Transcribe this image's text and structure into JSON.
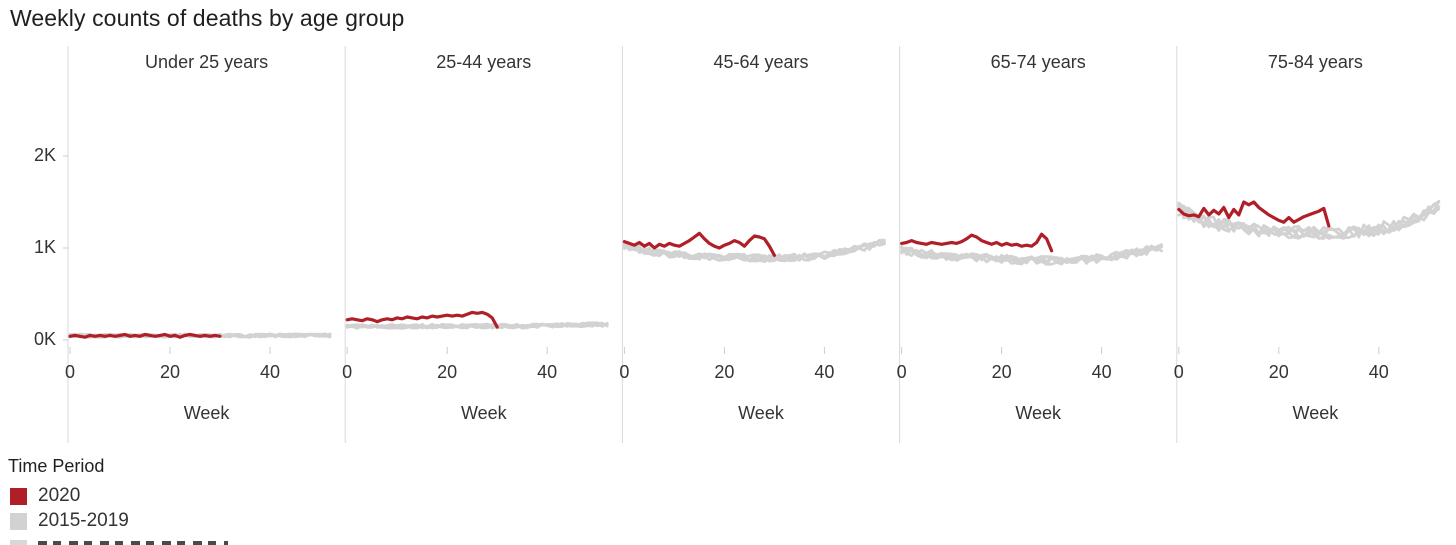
{
  "title": "Weekly counts of deaths by age group",
  "legend": {
    "title": "Time Period",
    "items": [
      {
        "label": "2020",
        "color": "#b01e28"
      },
      {
        "label": "2015-2019",
        "color": "#d2d2d2"
      }
    ],
    "partial_third_row_visible": true
  },
  "chart_data": {
    "type": "line",
    "title": "Weekly counts of deaths by age group",
    "xlabel": "Week",
    "x_ticks": [
      0,
      20,
      40
    ],
    "x_range_weeks": [
      0,
      52
    ],
    "y_tick_labels": [
      "0K",
      "1K",
      "2K"
    ],
    "y_tick_values_k": [
      0,
      1,
      2
    ],
    "ylim_k": [
      0,
      2.6
    ],
    "grid": false,
    "legend_position": "bottom-left",
    "units": "thousands of deaths per week",
    "gray_series_per_panel": 5,
    "red_weeks": [
      0,
      30
    ],
    "gray_mean_weeks": [
      0,
      4,
      8,
      12,
      16,
      20,
      24,
      28,
      32,
      36,
      40,
      44,
      48,
      52
    ],
    "colors": {
      "red_2020": "#b01e28",
      "gray_2015_2019": "#d2d2d2",
      "separator": "#d9d9d9",
      "tick": "#cccccc",
      "text": "#343434",
      "title_text": "#1f1f1f"
    },
    "panels": [
      {
        "label": "Under 25 years",
        "red_2020_k": [
          0.04,
          0.05,
          0.04,
          0.03,
          0.05,
          0.04,
          0.05,
          0.04,
          0.05,
          0.04,
          0.05,
          0.06,
          0.04,
          0.05,
          0.04,
          0.06,
          0.05,
          0.04,
          0.05,
          0.06,
          0.04,
          0.05,
          0.03,
          0.05,
          0.06,
          0.05,
          0.04,
          0.05,
          0.04,
          0.05,
          0.04
        ],
        "gray_mean_2015_2019_k": [
          0.05,
          0.045,
          0.05,
          0.045,
          0.05,
          0.045,
          0.05,
          0.045,
          0.05,
          0.045,
          0.05,
          0.05,
          0.055,
          0.05
        ],
        "gray_spread_k": 0.018
      },
      {
        "label": "25-44 years",
        "red_2020_k": [
          0.22,
          0.23,
          0.22,
          0.21,
          0.23,
          0.22,
          0.2,
          0.22,
          0.23,
          0.22,
          0.24,
          0.23,
          0.25,
          0.24,
          0.23,
          0.25,
          0.24,
          0.26,
          0.25,
          0.26,
          0.27,
          0.26,
          0.27,
          0.26,
          0.28,
          0.3,
          0.29,
          0.3,
          0.28,
          0.24,
          0.14
        ],
        "gray_mean_2015_2019_k": [
          0.15,
          0.145,
          0.15,
          0.148,
          0.152,
          0.15,
          0.148,
          0.15,
          0.152,
          0.15,
          0.155,
          0.16,
          0.165,
          0.17
        ],
        "gray_spread_k": 0.022
      },
      {
        "label": "45-64 years",
        "red_2020_k": [
          1.07,
          1.05,
          1.03,
          1.06,
          1.02,
          1.05,
          1.0,
          1.04,
          1.02,
          1.05,
          1.03,
          1.02,
          1.05,
          1.08,
          1.12,
          1.16,
          1.1,
          1.05,
          1.02,
          1.0,
          1.03,
          1.05,
          1.08,
          1.06,
          1.02,
          1.08,
          1.13,
          1.12,
          1.1,
          1.02,
          0.92
        ],
        "gray_mean_2015_2019_k": [
          1.03,
          0.97,
          0.94,
          0.92,
          0.91,
          0.9,
          0.895,
          0.89,
          0.895,
          0.9,
          0.92,
          0.96,
          1.01,
          1.06
        ],
        "gray_spread_k": 0.038
      },
      {
        "label": "65-74 years",
        "red_2020_k": [
          1.05,
          1.06,
          1.08,
          1.06,
          1.05,
          1.04,
          1.06,
          1.05,
          1.04,
          1.05,
          1.06,
          1.05,
          1.07,
          1.1,
          1.14,
          1.12,
          1.08,
          1.06,
          1.04,
          1.06,
          1.03,
          1.05,
          1.03,
          1.04,
          1.02,
          1.03,
          1.02,
          1.06,
          1.15,
          1.1,
          0.97
        ],
        "gray_mean_2015_2019_k": [
          0.98,
          0.94,
          0.92,
          0.9,
          0.89,
          0.88,
          0.87,
          0.865,
          0.86,
          0.87,
          0.89,
          0.92,
          0.96,
          1.01
        ],
        "gray_spread_k": 0.045
      },
      {
        "label": "75-84 years",
        "red_2020_k": [
          1.42,
          1.37,
          1.35,
          1.36,
          1.34,
          1.43,
          1.36,
          1.41,
          1.37,
          1.44,
          1.33,
          1.42,
          1.36,
          1.5,
          1.47,
          1.5,
          1.44,
          1.4,
          1.36,
          1.33,
          1.3,
          1.28,
          1.33,
          1.28,
          1.31,
          1.34,
          1.36,
          1.38,
          1.4,
          1.43,
          1.24
        ],
        "gray_mean_2015_2019_k": [
          1.42,
          1.31,
          1.26,
          1.22,
          1.2,
          1.18,
          1.17,
          1.16,
          1.16,
          1.18,
          1.21,
          1.26,
          1.33,
          1.47
        ],
        "gray_spread_k": 0.07
      }
    ]
  }
}
